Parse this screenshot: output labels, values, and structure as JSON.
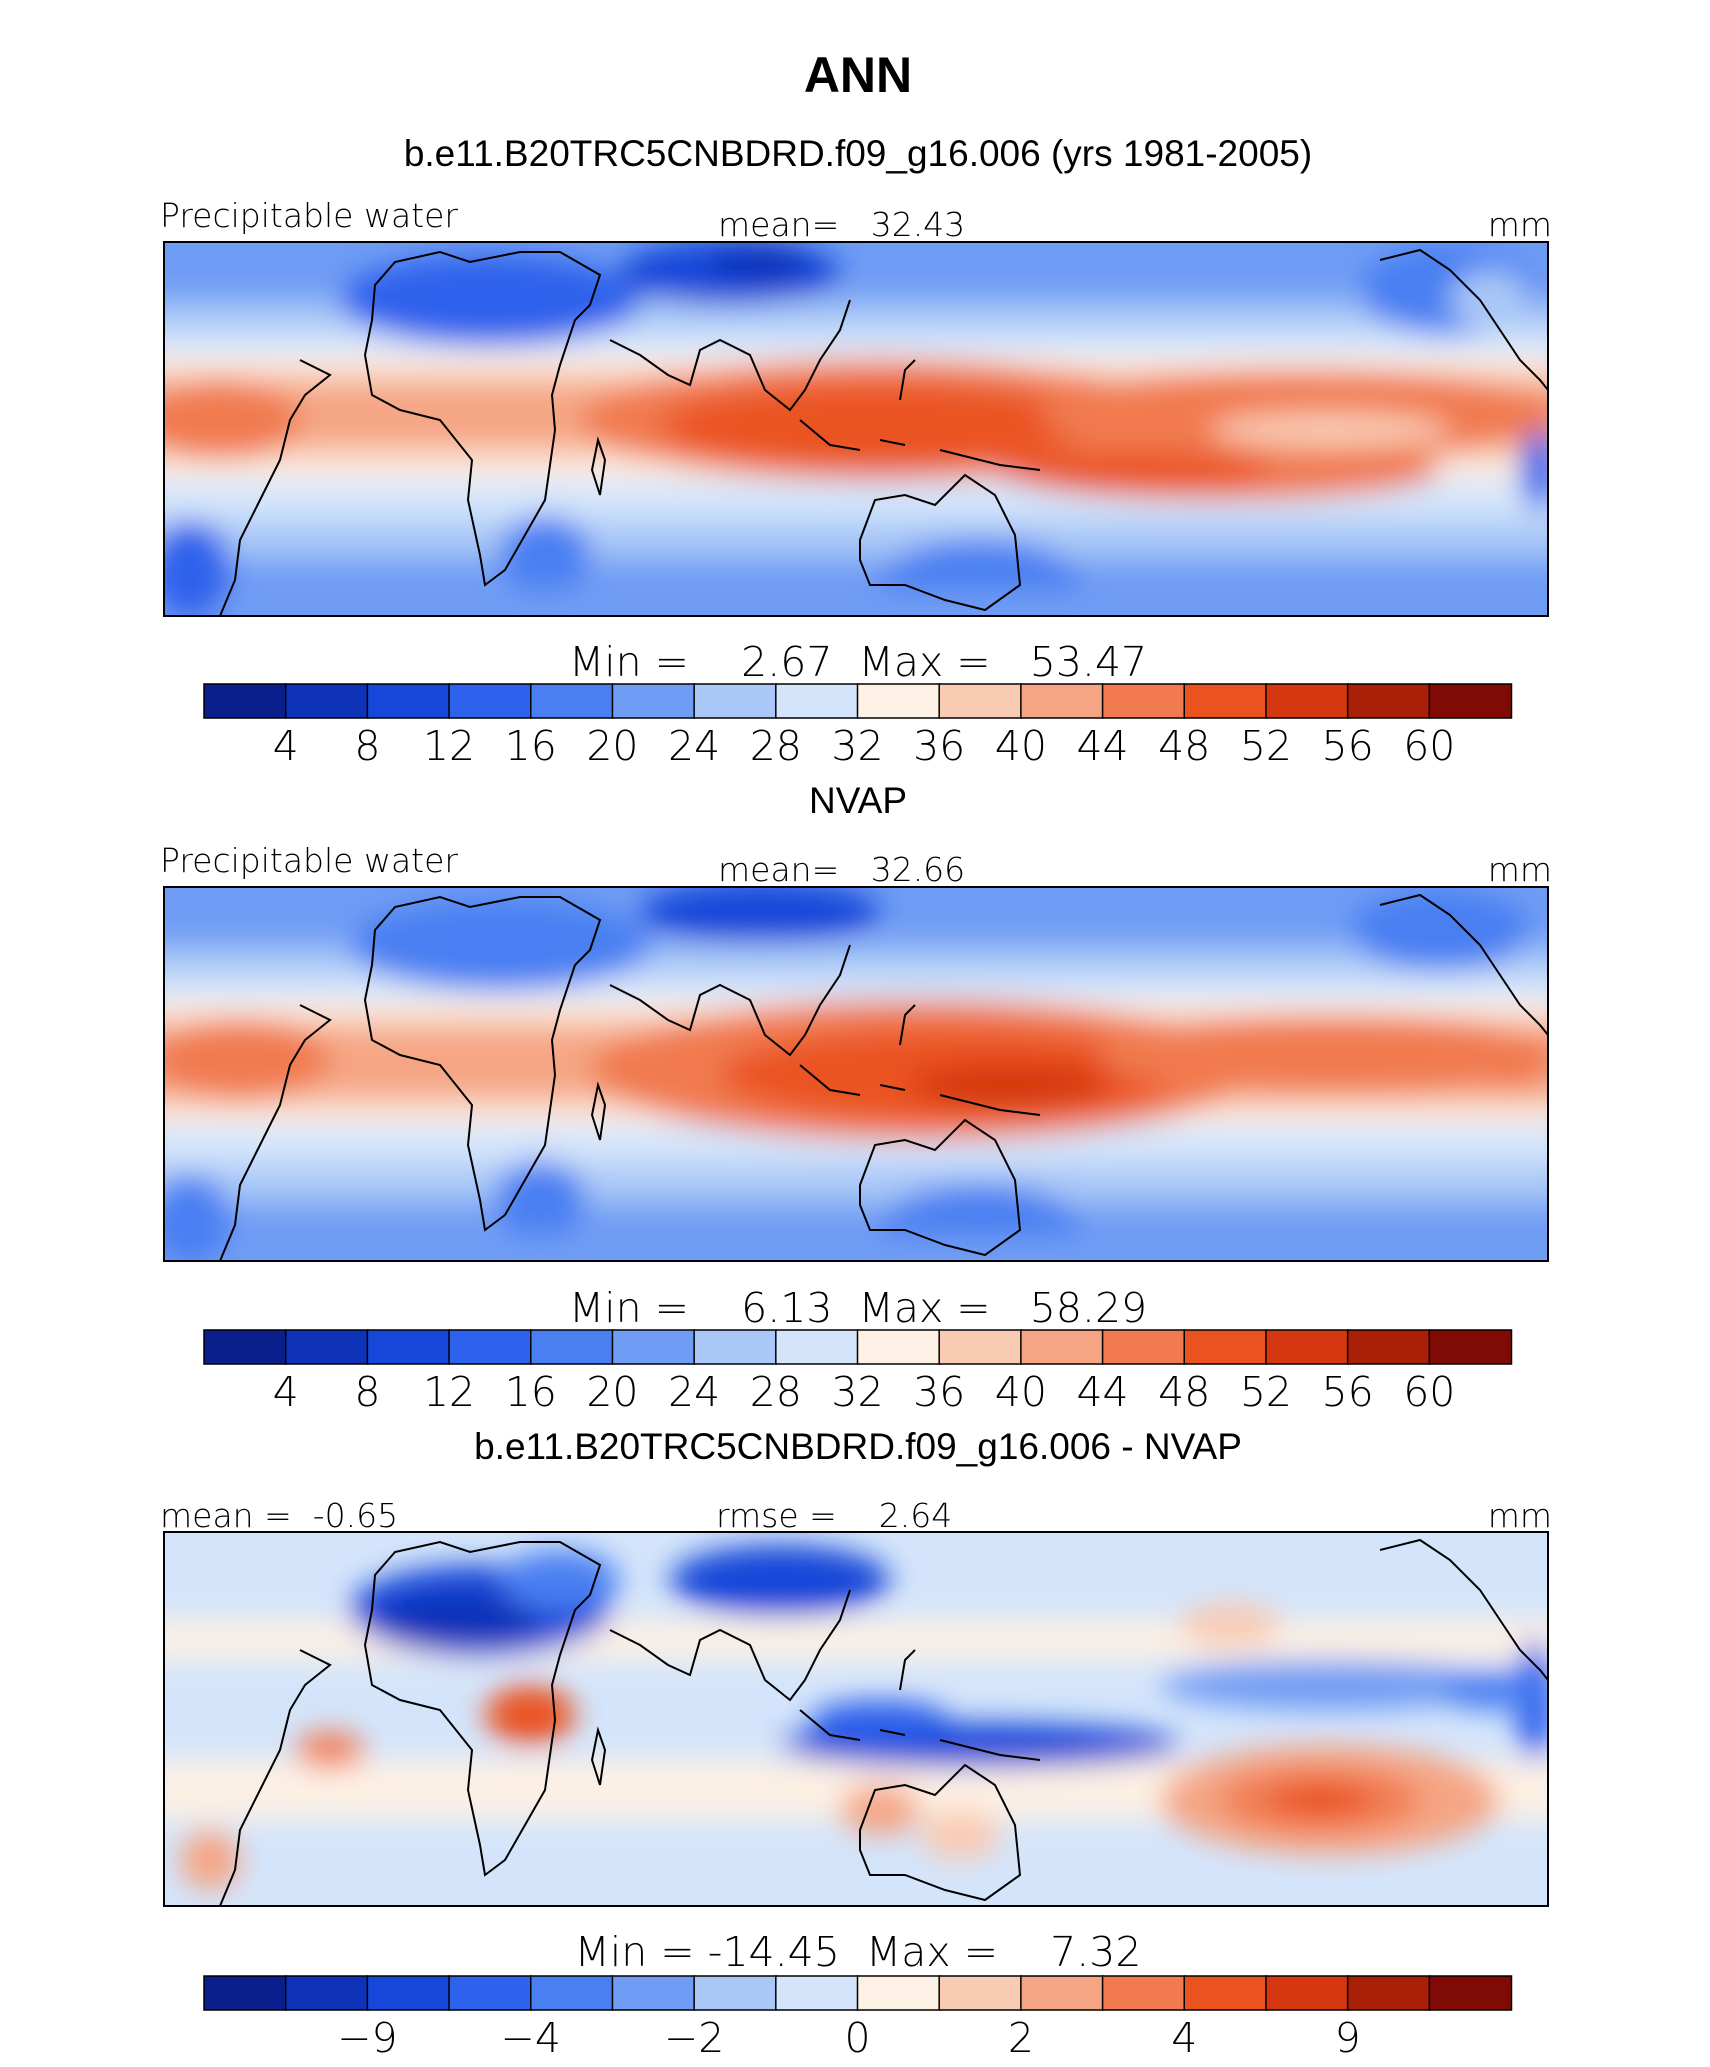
{
  "figure_title": "ANN",
  "chart_data": [
    {
      "type": "heatmap",
      "title": "b.e11.B20TRC5CNBDRD.f09_g16.006 (yrs 1981-2005)",
      "left_label": "Precipitable water",
      "center_label": "mean=   32.43",
      "units": "mm",
      "stats": "Min =    2.67  Max =   53.47",
      "colorbar": {
        "colors": [
          "#0a1e8c",
          "#0f33b8",
          "#1747d9",
          "#2d62ec",
          "#4a7ff2",
          "#6f9cf4",
          "#a9c7f7",
          "#d4e5fb",
          "#fdf0e4",
          "#f9cbb3",
          "#f5a584",
          "#f17a50",
          "#ea5320",
          "#d53710",
          "#aa1f08",
          "#800a04"
        ],
        "tick_labels": [
          "4",
          "8",
          "12",
          "16",
          "20",
          "24",
          "28",
          "32",
          "36",
          "40",
          "44",
          "48",
          "52",
          "56",
          "60"
        ]
      }
    },
    {
      "type": "heatmap",
      "title": "NVAP",
      "left_label": "Precipitable water",
      "center_label": "mean=   32.66",
      "units": "mm",
      "stats": "Min =    6.13  Max =   58.29",
      "colorbar": {
        "colors": [
          "#0a1e8c",
          "#0f33b8",
          "#1747d9",
          "#2d62ec",
          "#4a7ff2",
          "#6f9cf4",
          "#a9c7f7",
          "#d4e5fb",
          "#fdf0e4",
          "#f9cbb3",
          "#f5a584",
          "#f17a50",
          "#ea5320",
          "#d53710",
          "#aa1f08",
          "#800a04"
        ],
        "tick_labels": [
          "4",
          "8",
          "12",
          "16",
          "20",
          "24",
          "28",
          "32",
          "36",
          "40",
          "44",
          "48",
          "52",
          "56",
          "60"
        ]
      }
    },
    {
      "type": "heatmap",
      "title": "b.e11.B20TRC5CNBDRD.f09_g16.006 - NVAP",
      "left_label": "mean =  -0.65",
      "center_label": "rmse =    2.64",
      "units": "mm",
      "stats": "Min = -14.45  Max =    7.32",
      "colorbar": {
        "colors": [
          "#0a1e8c",
          "#0f33b8",
          "#1747d9",
          "#2d62ec",
          "#4a7ff2",
          "#6f9cf4",
          "#a9c7f7",
          "#d4e5fb",
          "#fdf0e4",
          "#f9cbb3",
          "#f5a584",
          "#f17a50",
          "#ea5320",
          "#d53710",
          "#aa1f08",
          "#800a04"
        ],
        "tick_labels": [
          "",
          "-9",
          "",
          "-4",
          "",
          "-2",
          "",
          "0",
          "",
          "2",
          "",
          "4",
          "",
          "9",
          ""
        ]
      }
    }
  ]
}
